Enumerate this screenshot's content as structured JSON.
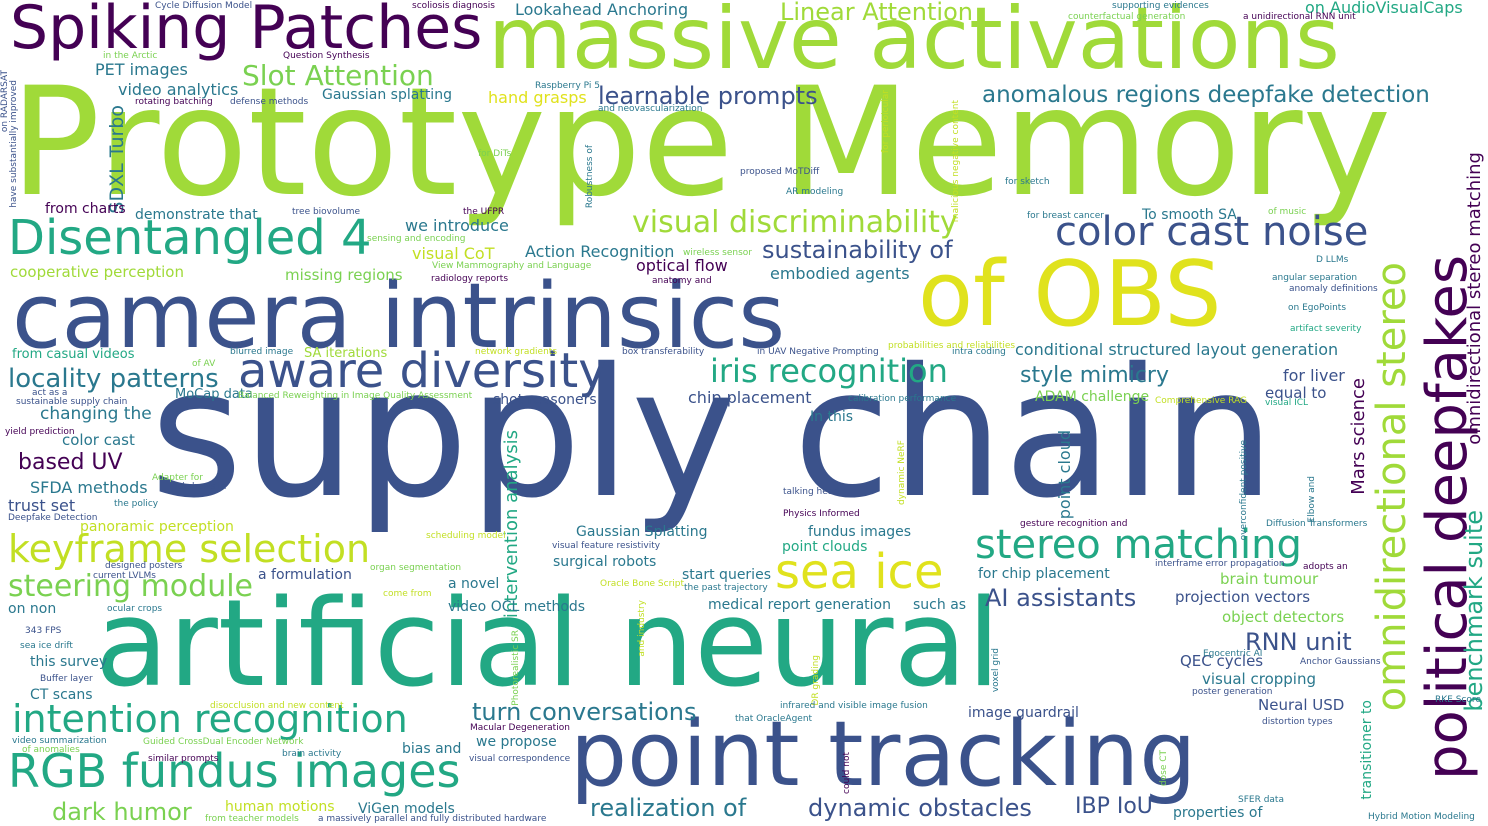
{
  "words": [
    {
      "text": "supply chain",
      "color": "#3b528b"
    },
    {
      "text": "Prototype Memory",
      "color": "#a0da39"
    },
    {
      "text": "artificial neural",
      "color": "#22a884"
    },
    {
      "text": "camera intrinsics",
      "color": "#3b528b"
    },
    {
      "text": "massive activations",
      "color": "#a0da39"
    },
    {
      "text": "point tracking",
      "color": "#3b528b"
    },
    {
      "text": "of OBS",
      "color": "#e0e21d"
    },
    {
      "text": "Spiking Patches",
      "color": "#440154"
    },
    {
      "text": "aware diversity",
      "color": "#3b528b"
    },
    {
      "text": "RGB fundus images",
      "color": "#22a884"
    },
    {
      "text": "political deepfakes",
      "color": "#440154"
    },
    {
      "text": "Disentangled 4",
      "color": "#22a884"
    },
    {
      "text": "intention recognition",
      "color": "#22a884"
    },
    {
      "text": "keyframe selection",
      "color": "#c2df23"
    },
    {
      "text": "omnidirectional stereo",
      "color": "#a0da39"
    },
    {
      "text": "sea ice",
      "color": "#e0e21d"
    },
    {
      "text": "stereo matching",
      "color": "#22a884"
    },
    {
      "text": "color cast noise",
      "color": "#3b528b"
    },
    {
      "text": "iris recognition",
      "color": "#22a884"
    },
    {
      "text": "visual discriminability",
      "color": "#a0da39"
    },
    {
      "text": "steering module",
      "color": "#7ad151"
    },
    {
      "text": "anomalous regions deepfake detection",
      "color": "#2a788e"
    },
    {
      "text": "Linear Attention",
      "color": "#a0da39"
    },
    {
      "text": "Slot Attention",
      "color": "#7ad151"
    },
    {
      "text": "learnable prompts",
      "color": "#3b528b"
    },
    {
      "text": "locality patterns",
      "color": "#2a788e"
    },
    {
      "text": "sustainability of",
      "color": "#3b528b"
    },
    {
      "text": "turn conversations",
      "color": "#2a788e"
    },
    {
      "text": "realization of",
      "color": "#2a788e"
    },
    {
      "text": "dynamic obstacles",
      "color": "#3b528b"
    },
    {
      "text": "AI assistants",
      "color": "#3b528b"
    },
    {
      "text": "style mimicry",
      "color": "#2a788e"
    },
    {
      "text": "benchmark suite",
      "color": "#22a884"
    },
    {
      "text": "RNN unit",
      "color": "#3b528b"
    },
    {
      "text": "dark humor",
      "color": "#7ad151"
    },
    {
      "text": "IBP IoU",
      "color": "#3b528b"
    },
    {
      "text": "based UV",
      "color": "#440154"
    },
    {
      "text": "omnidirectional stereo matching",
      "color": "#440154"
    },
    {
      "text": "conditional structured layout generation",
      "color": "#2a788e"
    },
    {
      "text": "Lookahead Anchoring",
      "color": "#2a788e"
    },
    {
      "text": "on AudioVisualCaps",
      "color": "#22a884"
    },
    {
      "text": "PET images",
      "color": "#2a788e"
    },
    {
      "text": "video analytics",
      "color": "#2a788e"
    },
    {
      "text": "Gaussian splatting",
      "color": "#2a788e"
    },
    {
      "text": "hand grasps",
      "color": "#e0e21d"
    },
    {
      "text": "demonstrate that",
      "color": "#2a788e"
    },
    {
      "text": "from charts",
      "color": "#440154"
    },
    {
      "text": "we introduce",
      "color": "#2a788e"
    },
    {
      "text": "visual CoT",
      "color": "#c2df23"
    },
    {
      "text": "Action Recognition",
      "color": "#2a788e"
    },
    {
      "text": "optical flow",
      "color": "#440154"
    },
    {
      "text": "embodied agents",
      "color": "#2a788e"
    },
    {
      "text": "cooperative perception",
      "color": "#a0da39"
    },
    {
      "text": "missing regions",
      "color": "#7ad151"
    },
    {
      "text": "from casual videos",
      "color": "#22a884"
    },
    {
      "text": "SA iterations",
      "color": "#a0da39"
    },
    {
      "text": "MoCap data",
      "color": "#2a788e"
    },
    {
      "text": "changing the",
      "color": "#2a788e"
    },
    {
      "text": "color cast",
      "color": "#2a788e"
    },
    {
      "text": "SFDA methods",
      "color": "#2a788e"
    },
    {
      "text": "trust set",
      "color": "#3b528b"
    },
    {
      "text": "panoramic perception",
      "color": "#c2df23"
    },
    {
      "text": "shot reasoners",
      "color": "#3b528b"
    },
    {
      "text": "chip placement",
      "color": "#3b528b"
    },
    {
      "text": "In this",
      "color": "#2a788e"
    },
    {
      "text": "ADAM challenge",
      "color": "#7ad151"
    },
    {
      "text": "for liver",
      "color": "#3b528b"
    },
    {
      "text": "equal to",
      "color": "#3b528b"
    },
    {
      "text": "Mars science",
      "color": "#440154"
    },
    {
      "text": "fundus images",
      "color": "#2a788e"
    },
    {
      "text": "point clouds",
      "color": "#22a884"
    },
    {
      "text": "Gaussian Splatting",
      "color": "#2a788e"
    },
    {
      "text": "surgical robots",
      "color": "#2a788e"
    },
    {
      "text": "start queries",
      "color": "#2a788e"
    },
    {
      "text": "medical report generation",
      "color": "#2a788e"
    },
    {
      "text": "for chip placement",
      "color": "#2a788e"
    },
    {
      "text": "brain tumour",
      "color": "#7ad151"
    },
    {
      "text": "projection vectors",
      "color": "#3b528b"
    },
    {
      "text": "object detectors",
      "color": "#7ad151"
    },
    {
      "text": "such as",
      "color": "#2a788e"
    },
    {
      "text": "a novel",
      "color": "#2a788e"
    },
    {
      "text": "video OCL methods",
      "color": "#2a788e"
    },
    {
      "text": "a formulation",
      "color": "#3b528b"
    },
    {
      "text": "QEC cycles",
      "color": "#3b528b"
    },
    {
      "text": "visual cropping",
      "color": "#2a788e"
    },
    {
      "text": "Neural USD",
      "color": "#3b528b"
    },
    {
      "text": "image guardrail",
      "color": "#3b528b"
    },
    {
      "text": "we propose",
      "color": "#2a788e"
    },
    {
      "text": "bias and",
      "color": "#2a788e"
    },
    {
      "text": "human motions",
      "color": "#c2df23"
    },
    {
      "text": "ViGen models",
      "color": "#2a788e"
    },
    {
      "text": "properties of",
      "color": "#2a788e"
    },
    {
      "text": "on non",
      "color": "#2a788e"
    },
    {
      "text": "this survey",
      "color": "#2a788e"
    },
    {
      "text": "CT scans",
      "color": "#2a788e"
    },
    {
      "text": "SDXL Turbo",
      "color": "#2a788e"
    },
    {
      "text": "intervention analysis",
      "color": "#22a884"
    },
    {
      "text": "point cloud",
      "color": "#2a788e"
    },
    {
      "text": "Cycle Diffusion Model",
      "color": "#3b528b"
    },
    {
      "text": "scoliosis diagnosis",
      "color": "#440154"
    },
    {
      "text": "supporting evidences",
      "color": "#2a788e"
    },
    {
      "text": "counterfactual generation",
      "color": "#7ad151"
    },
    {
      "text": "a unidirectional RNN unit",
      "color": "#440154"
    },
    {
      "text": "in the Arctic",
      "color": "#7ad151"
    },
    {
      "text": "Question Synthesis",
      "color": "#440154"
    },
    {
      "text": "Raspberry Pi 5",
      "color": "#2a788e"
    },
    {
      "text": "and neovascularization",
      "color": "#2a788e"
    },
    {
      "text": "rotating batching",
      "color": "#440154"
    },
    {
      "text": "defense methods",
      "color": "#3b528b"
    },
    {
      "text": "on RADARSAT",
      "color": "#3b528b"
    },
    {
      "text": "have substantially improved",
      "color": "#3b528b"
    },
    {
      "text": "for DiTs",
      "color": "#7ad151"
    },
    {
      "text": "Robustness of",
      "color": "#2a788e"
    },
    {
      "text": "proposed MoTDiff",
      "color": "#3b528b"
    },
    {
      "text": "AR modeling",
      "color": "#2a788e"
    },
    {
      "text": "tree biovolume",
      "color": "#3b528b"
    },
    {
      "text": "the UFPR",
      "color": "#440154"
    },
    {
      "text": "sensing and encoding",
      "color": "#7ad151"
    },
    {
      "text": "wireless sensor",
      "color": "#7ad151"
    },
    {
      "text": "View Mammography and Language",
      "color": "#7ad151"
    },
    {
      "text": "radiology reports",
      "color": "#440154"
    },
    {
      "text": "anatomy and",
      "color": "#440154"
    },
    {
      "text": "for perioicular",
      "color": "#c2df23"
    },
    {
      "text": "malicious negative content",
      "color": "#c2df23"
    },
    {
      "text": "for sketch",
      "color": "#2a788e"
    },
    {
      "text": "for breast cancer",
      "color": "#2a788e"
    },
    {
      "text": "of music",
      "color": "#7ad151"
    },
    {
      "text": "To smooth SA",
      "color": "#2a788e"
    },
    {
      "text": "D LLMs",
      "color": "#2a788e"
    },
    {
      "text": "angular separation",
      "color": "#2a788e"
    },
    {
      "text": "anomaly definitions",
      "color": "#3b528b"
    },
    {
      "text": "on EgoPoints",
      "color": "#2a788e"
    },
    {
      "text": "artifact severity",
      "color": "#22a884"
    },
    {
      "text": "probabilities and reliabilities",
      "color": "#c2df23"
    },
    {
      "text": "intra coding",
      "color": "#2a788e"
    },
    {
      "text": "blurred image",
      "color": "#2a788e"
    },
    {
      "text": "of AV",
      "color": "#7ad151"
    },
    {
      "text": "network gradients",
      "color": "#c2df23"
    },
    {
      "text": "box transferability",
      "color": "#3b528b"
    },
    {
      "text": "in UAV Negative Prompting",
      "color": "#3b528b"
    },
    {
      "text": "act as a",
      "color": "#3b528b"
    },
    {
      "text": "sustainable supply chain",
      "color": "#3b528b"
    },
    {
      "text": "Balanced Reweighting in Image Quality Assessment",
      "color": "#7ad151"
    },
    {
      "text": "calibration performance",
      "color": "#2a788e"
    },
    {
      "text": "Comprehensive RAG",
      "color": "#c2df23"
    },
    {
      "text": "visual ICL",
      "color": "#22a884"
    },
    {
      "text": "yield prediction",
      "color": "#440154"
    },
    {
      "text": "Adapter for",
      "color": "#7ad151"
    },
    {
      "text": "rickshaws in",
      "color": "#3b528b"
    },
    {
      "text": "the policy",
      "color": "#2a788e"
    },
    {
      "text": "Deepfake Detection",
      "color": "#3b528b"
    },
    {
      "text": "talking head",
      "color": "#3b528b"
    },
    {
      "text": "dynamic NeRF",
      "color": "#c2df23"
    },
    {
      "text": "Physics Informed",
      "color": "#440154"
    },
    {
      "text": "overconfident positive",
      "color": "#2a788e"
    },
    {
      "text": "Elbow and",
      "color": "#2a788e"
    },
    {
      "text": "gesture recognition and",
      "color": "#440154"
    },
    {
      "text": "Diffusion Transformers",
      "color": "#2a788e"
    },
    {
      "text": "scheduling model",
      "color": "#c2df23"
    },
    {
      "text": "visual feature resistivity",
      "color": "#3b528b"
    },
    {
      "text": "designed posters",
      "color": "#3b528b"
    },
    {
      "text": "organ segmentation",
      "color": "#7ad151"
    },
    {
      "text": "current LVLMs",
      "color": "#3b528b"
    },
    {
      "text": "come from",
      "color": "#c2df23"
    },
    {
      "text": "Oracle Bone Script",
      "color": "#c2df23"
    },
    {
      "text": "the past trajectory",
      "color": "#2a788e"
    },
    {
      "text": "interframe error propagation",
      "color": "#3b528b"
    },
    {
      "text": "adopts an",
      "color": "#440154"
    },
    {
      "text": "ocular crops",
      "color": "#2a788e"
    },
    {
      "text": "343 FPS",
      "color": "#3b528b"
    },
    {
      "text": "sea ice drift",
      "color": "#2a788e"
    },
    {
      "text": "Buffer layer",
      "color": "#3b528b"
    },
    {
      "text": "Photorealistic SR",
      "color": "#7ad151"
    },
    {
      "text": "and industry",
      "color": "#c2df23"
    },
    {
      "text": "DR grading",
      "color": "#c2df23"
    },
    {
      "text": "voxel grid",
      "color": "#2a788e"
    },
    {
      "text": "Egocentric AI",
      "color": "#2a788e"
    },
    {
      "text": "Anchor Gaussians",
      "color": "#3b528b"
    },
    {
      "text": "poster generation",
      "color": "#3b528b"
    },
    {
      "text": "RKE Score",
      "color": "#2a788e"
    },
    {
      "text": "disocclusion and new content",
      "color": "#c2df23"
    },
    {
      "text": "infrared and visible image fusion",
      "color": "#2a788e"
    },
    {
      "text": "that OracleAgent",
      "color": "#2a788e"
    },
    {
      "text": "Macular Degeneration",
      "color": "#440154"
    },
    {
      "text": "distortion types",
      "color": "#3b528b"
    },
    {
      "text": "transitioner to",
      "color": "#22a884"
    },
    {
      "text": "video summarization",
      "color": "#2a788e"
    },
    {
      "text": "of anomalies",
      "color": "#7ad151"
    },
    {
      "text": "Guided CrossDual Encoder Network",
      "color": "#7ad151"
    },
    {
      "text": "brain activity",
      "color": "#2a788e"
    },
    {
      "text": "similar prompts",
      "color": "#440154"
    },
    {
      "text": "visual correspondence",
      "color": "#3b528b"
    },
    {
      "text": "could not",
      "color": "#440154"
    },
    {
      "text": "dose CT",
      "color": "#7ad151"
    },
    {
      "text": "SFER data",
      "color": "#2a788e"
    },
    {
      "text": "from teacher models",
      "color": "#7ad151"
    },
    {
      "text": "a massively parallel and fully distributed hardware",
      "color": "#3b528b"
    },
    {
      "text": "Hybrid Motion Modeling",
      "color": "#2a788e"
    }
  ]
}
